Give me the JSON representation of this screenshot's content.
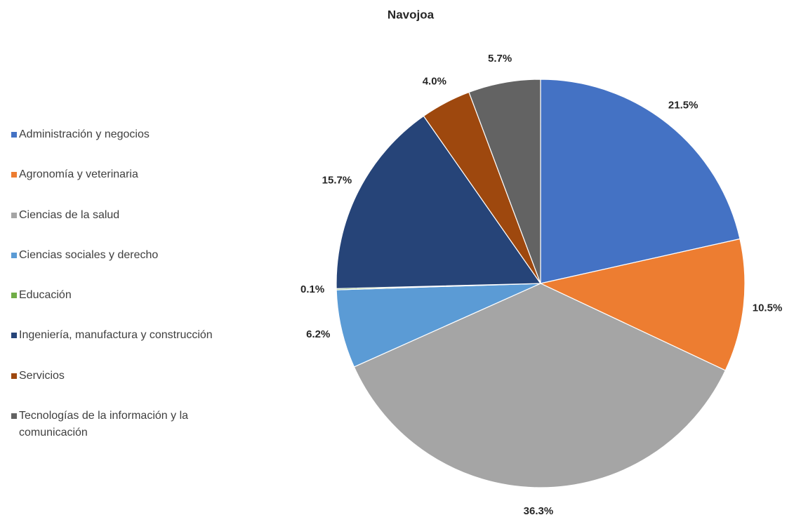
{
  "chart_data": {
    "type": "pie",
    "title": "Navojoa",
    "categories": [
      "Administración y negocios",
      "Agronomía y veterinaria",
      "Ciencias de la salud",
      "Ciencias sociales y derecho",
      "Educación",
      "Ingeniería, manufactura y construcción",
      "Servicios",
      "Tecnologías de la información y la comunicación"
    ],
    "values": [
      21.5,
      10.5,
      36.3,
      6.2,
      0.1,
      15.7,
      4.0,
      5.7
    ],
    "value_labels": [
      "21.5%",
      "10.5%",
      "36.3%",
      "6.2%",
      "0.1%",
      "15.7%",
      "4.0%",
      "5.7%"
    ],
    "colors": [
      "#4472c4",
      "#ed7d31",
      "#a5a5a5",
      "#5b9bd5",
      "#70ad47",
      "#264478",
      "#9e480e",
      "#636363"
    ],
    "legend": "left"
  }
}
